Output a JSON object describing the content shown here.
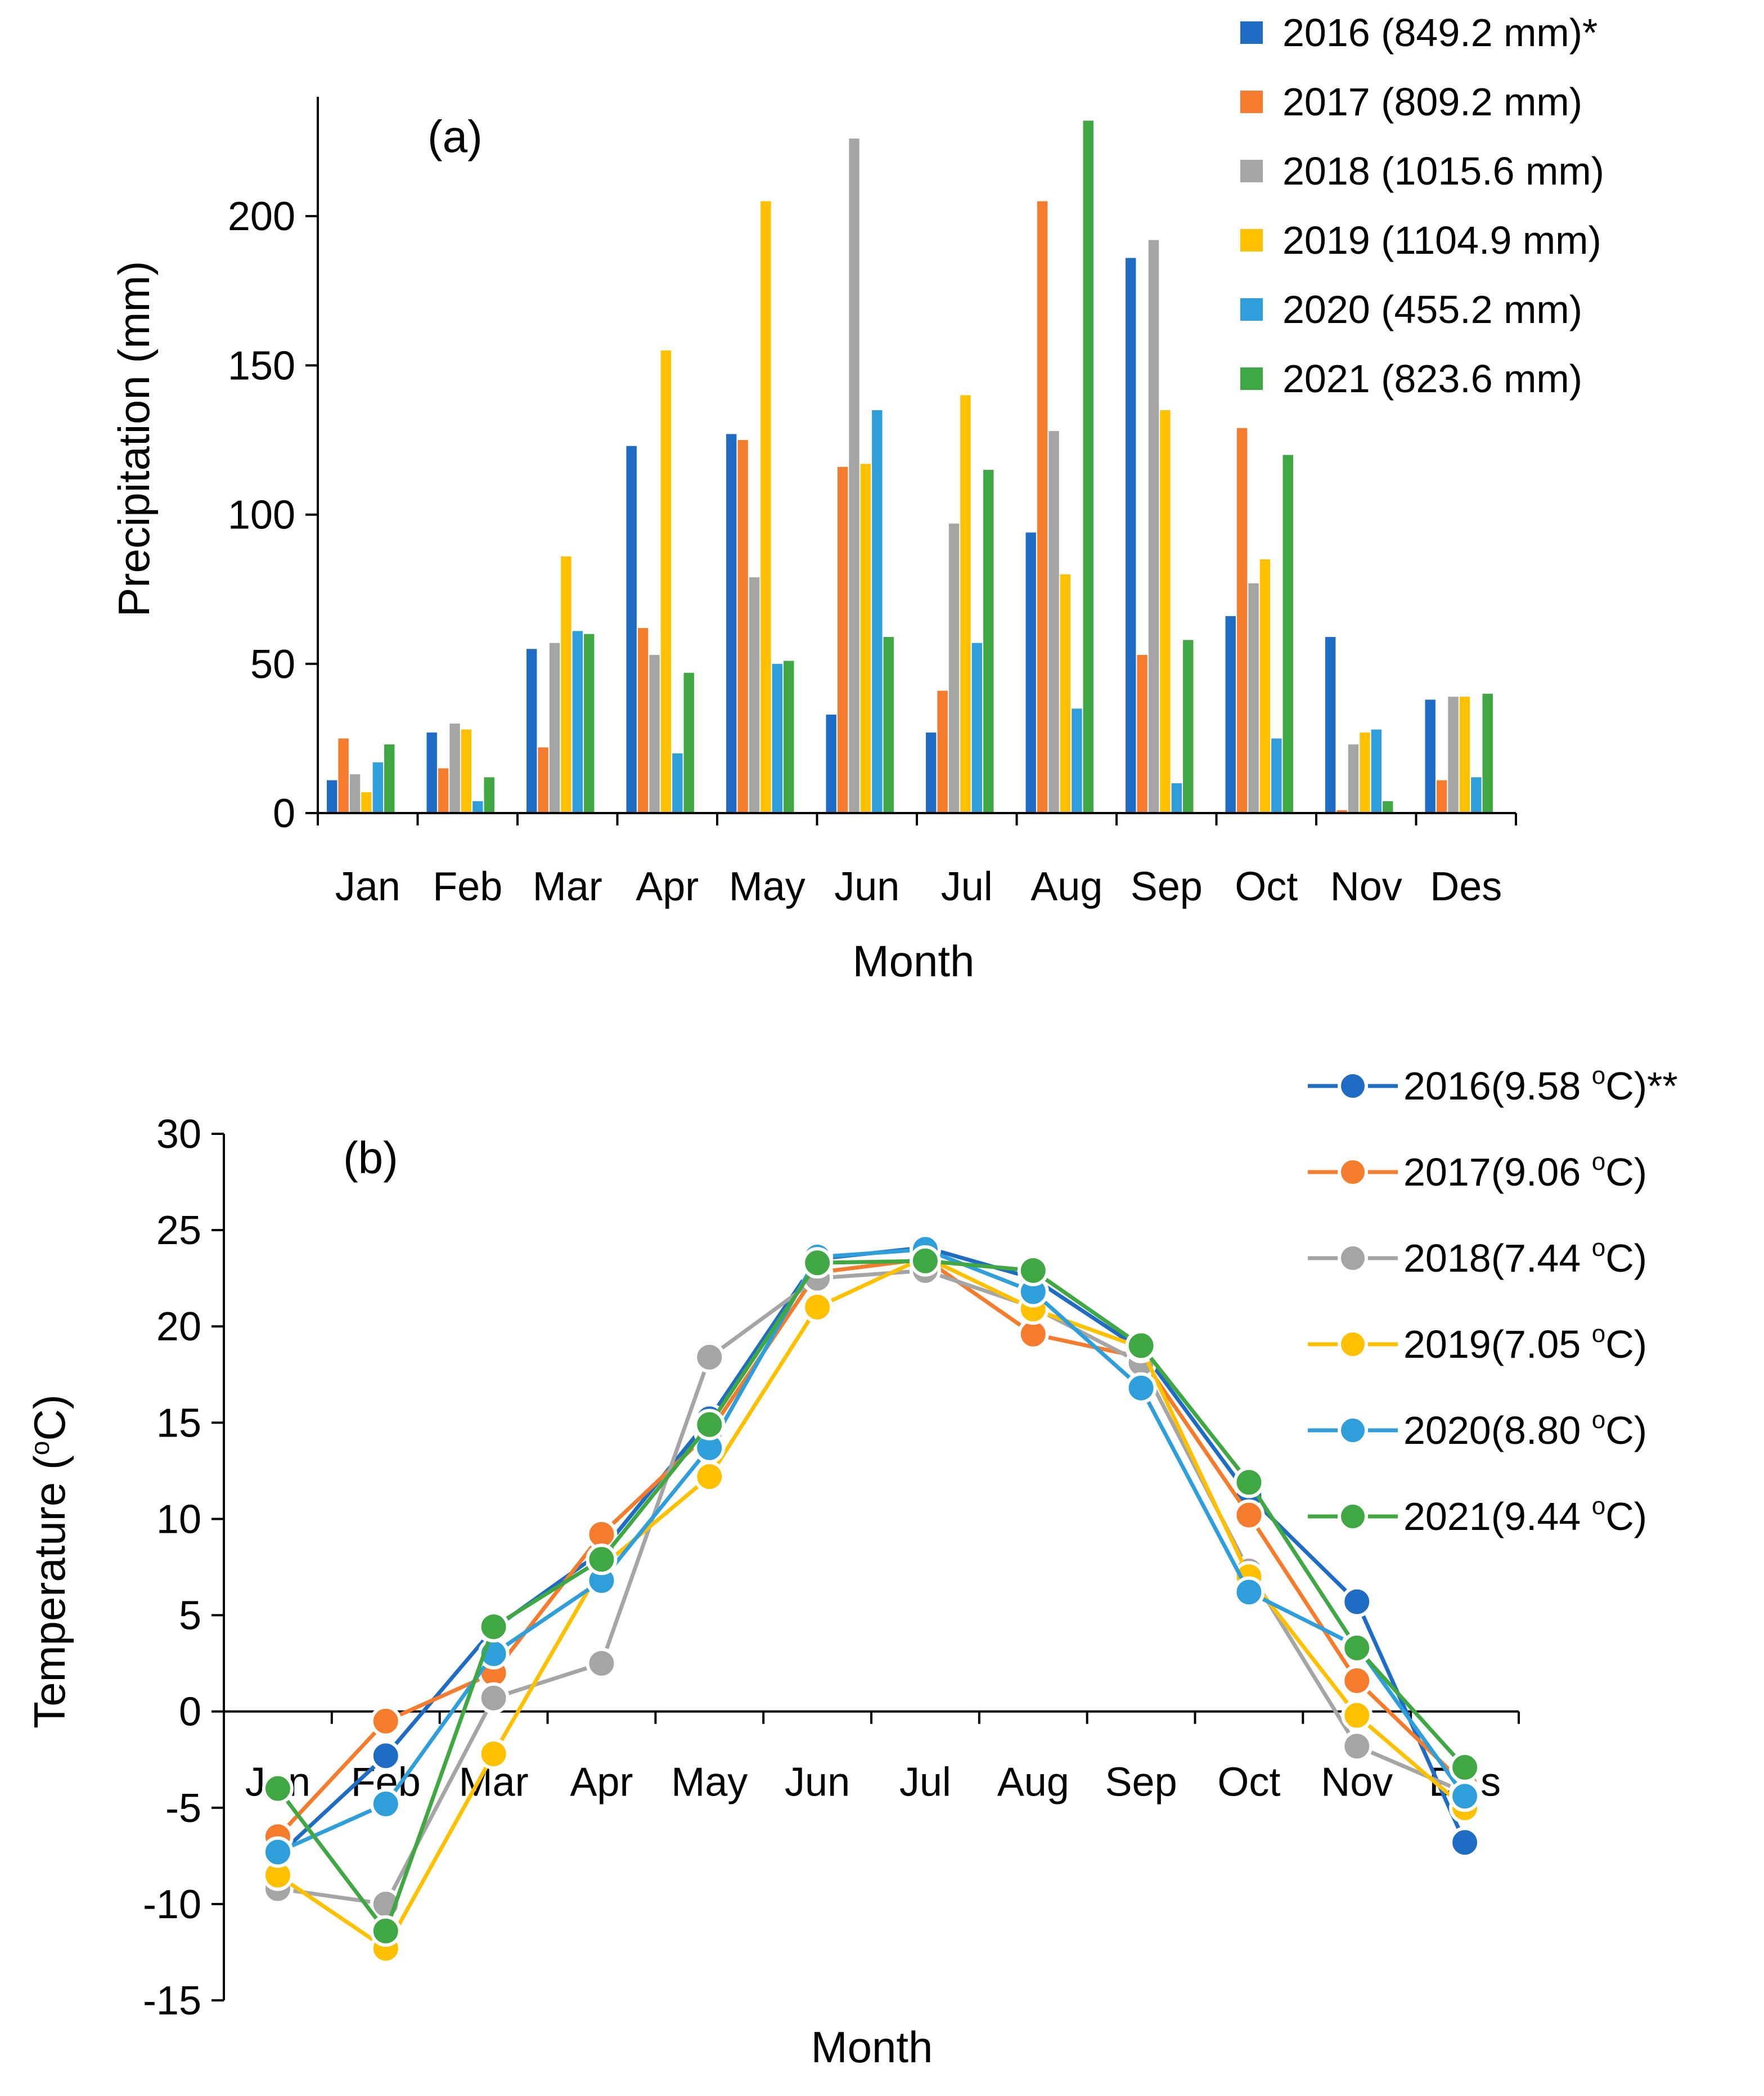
{
  "chart_data": [
    {
      "type": "bar",
      "panel_label": "(a)",
      "xlabel": "Month",
      "ylabel": "Precipitation (mm)",
      "ylim": [
        0,
        240
      ],
      "yticks": [
        0,
        50,
        100,
        150,
        200
      ],
      "categories": [
        "Jan",
        "Feb",
        "Mar",
        "Apr",
        "May",
        "Jun",
        "Jul",
        "Aug",
        "Sep",
        "Oct",
        "Nov",
        "Des"
      ],
      "legend_position": "top-right",
      "series": [
        {
          "name": "2016 (849.2 mm)*",
          "color": "#1f6cc4",
          "values": [
            11,
            27,
            55,
            123,
            127,
            33,
            27,
            94,
            186,
            66,
            59,
            38
          ]
        },
        {
          "name": "2017 (809.2 mm)",
          "color": "#f47c2c",
          "values": [
            25,
            15,
            22,
            62,
            125,
            116,
            41,
            205,
            53,
            129,
            1,
            11
          ]
        },
        {
          "name": "2018 (1015.6 mm)",
          "color": "#a5a5a5",
          "values": [
            13,
            30,
            57,
            53,
            79,
            226,
            97,
            128,
            192,
            77,
            23,
            39
          ]
        },
        {
          "name": "2019 (1104.9 mm)",
          "color": "#ffc000",
          "values": [
            7,
            28,
            86,
            155,
            205,
            117,
            140,
            80,
            135,
            85,
            27,
            39
          ]
        },
        {
          "name": "2020 (455.2 mm)",
          "color": "#2e9fdb",
          "values": [
            17,
            4,
            61,
            20,
            50,
            135,
            57,
            35,
            10,
            25,
            28,
            12
          ]
        },
        {
          "name": "2021 (823.6 mm)",
          "color": "#3fa843",
          "values": [
            23,
            12,
            60,
            47,
            51,
            59,
            115,
            232,
            58,
            120,
            4,
            40
          ]
        }
      ]
    },
    {
      "type": "line",
      "panel_label": "(b)",
      "xlabel": "Month",
      "ylabel": "Temperature (",
      "ylabel_sup": "o",
      "ylabel_end": "C)",
      "ylim": [
        -15,
        30
      ],
      "yticks": [
        -15,
        -10,
        -5,
        0,
        5,
        10,
        15,
        20,
        25,
        30
      ],
      "categories": [
        "Jan",
        "Feb",
        "Mar",
        "Apr",
        "May",
        "Jun",
        "Jul",
        "Aug",
        "Sep",
        "Oct",
        "Nov",
        "Des"
      ],
      "legend_position": "top-right",
      "series": [
        {
          "name": "2016(9.58 ",
          "unit_sup": "o",
          "unit_end": "C)**",
          "color": "#1f6cc4",
          "values": [
            -7.5,
            -2.3,
            4.3,
            8.3,
            15.2,
            23.5,
            24.1,
            22.5,
            18.8,
            11.2,
            5.7,
            -6.8
          ]
        },
        {
          "name": "2017(9.06 ",
          "unit_sup": "o",
          "unit_end": "C)",
          "color": "#f47c2c",
          "values": [
            -6.5,
            -0.5,
            2.0,
            9.2,
            14.5,
            22.8,
            23.5,
            19.6,
            18.4,
            10.2,
            1.6,
            -3.8
          ]
        },
        {
          "name": "2018(7.44 ",
          "unit_sup": "o",
          "unit_end": "C)",
          "color": "#a5a5a5",
          "values": [
            -9.2,
            -10.0,
            0.7,
            2.5,
            18.4,
            22.5,
            22.9,
            21.0,
            18.1,
            7.3,
            -1.8,
            -4.2
          ]
        },
        {
          "name": "2019(7.05 ",
          "unit_sup": "o",
          "unit_end": "C)",
          "color": "#ffc000",
          "values": [
            -8.5,
            -12.3,
            -2.2,
            7.5,
            12.2,
            21.0,
            23.6,
            20.9,
            18.9,
            7.0,
            -0.2,
            -5.0
          ]
        },
        {
          "name": "2020(8.80 ",
          "unit_sup": "o",
          "unit_end": "C)",
          "color": "#2e9fdb",
          "values": [
            -7.3,
            -4.8,
            3.0,
            6.8,
            13.7,
            23.6,
            24.0,
            21.8,
            16.8,
            6.2,
            3.4,
            -4.4
          ]
        },
        {
          "name": "2021(9.44 ",
          "unit_sup": "o",
          "unit_end": "C)",
          "color": "#3fa843",
          "values": [
            -4.0,
            -11.4,
            4.4,
            7.9,
            14.9,
            23.3,
            23.4,
            22.9,
            19.0,
            11.9,
            3.3,
            -2.9
          ]
        }
      ]
    }
  ]
}
